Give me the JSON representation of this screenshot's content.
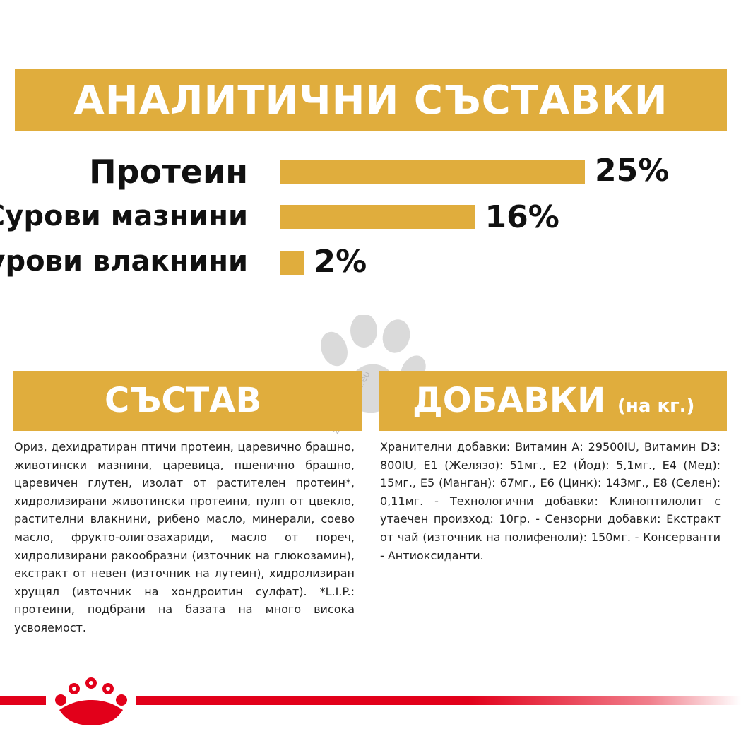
{
  "analytical": {
    "title": "АНАЛИТИЧНИ СЪСТАВКИ",
    "rows": [
      {
        "label": "Протеин",
        "value": "25%",
        "percent": 25
      },
      {
        "label": "Сурови мазнини",
        "value": "16%",
        "percent": 16
      },
      {
        "label": "Сурови влакнини",
        "value": "2%",
        "percent": 2
      }
    ]
  },
  "composition": {
    "title": "СЪСТАВ",
    "text": "Ориз, дехидратиран птичи протеин, царевично брашно, животински мазнини, царевица, пшенично брашно, царевичен глутен, изолат от растителен протеин*, хидролизирани животински протеини, пулп от цвекло, растителни влакнини, рибено масло, минерали, соево масло, фрукто-олигозахариди, масло от пореч, хидролизирани ракообразни (източник на глюкозамин), екстракт от невен (източник на лутеин), хидролизиран хрущял (източник на хондроитин сулфат). *L.I.P.: протеини, подбрани на базата на много висока усвояемост."
  },
  "additives": {
    "title": "ДОБАВКИ",
    "subtitle": "(на кг.)",
    "text": "Хранителни добавки: Витамин А: 29500IU, Витамин D3: 800IU, E1 (Желязо): 51мг., E2 (Йод): 5,1мг., E4 (Мед): 15мг., E5 (Манган): 67мг., E6 (Цинк): 143мг., E8 (Селен): 0,11мг. - Технологични добавки: Клиноптилолит с утаечен произход: 10гр. - Сензорни добавки: Екстракт от чай (източник на полифеноли): 150мг. - Консерванти - Антиоксиданти."
  },
  "watermark": "zoomagazin.eu",
  "colors": {
    "gold": "#e0ad3d",
    "red": "#e2001a"
  },
  "icons": {
    "paw": "paw-icon",
    "brand": "crown-logo-icon"
  }
}
